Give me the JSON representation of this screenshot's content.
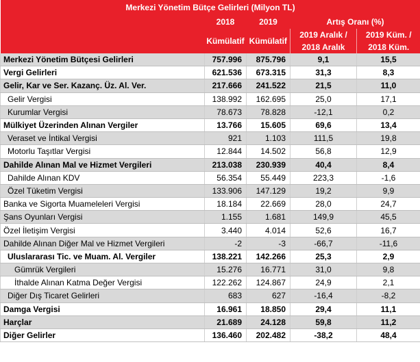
{
  "header": {
    "title": "Merkezi Yönetim Bütçe Gelirleri (Milyon TL)",
    "year_2018": "2018",
    "year_2019": "2019",
    "growth_label": "Artış Oranı (%)",
    "cum_2018": "Kümülatif",
    "cum_2019": "Kümülatif",
    "col3_line1": "2019 Aralık /",
    "col3_line2": "2018 Aralık",
    "col4_line1": "2019 Küm. /",
    "col4_line2": "2018 Küm."
  },
  "rows": [
    {
      "label": "Merkezi Yönetim  Bütçesi Gelirleri",
      "v2018": "757.996",
      "v2019": "875.796",
      "dec": "9,1",
      "cum": "15,5",
      "bold": true,
      "shade": true,
      "indent": 0
    },
    {
      "label": "Vergi Gelirleri",
      "v2018": "621.536",
      "v2019": "673.315",
      "dec": "31,3",
      "cum": "8,3",
      "bold": true,
      "shade": false,
      "indent": 0
    },
    {
      "label": "Gelir, Kar ve Ser. Kazanç. Üz. Al. Ver.",
      "v2018": "217.666",
      "v2019": "241.522",
      "dec": "21,5",
      "cum": "11,0",
      "bold": true,
      "shade": true,
      "indent": 0
    },
    {
      "label": "Gelir Vergisi",
      "v2018": "138.992",
      "v2019": "162.695",
      "dec": "25,0",
      "cum": "17,1",
      "bold": false,
      "shade": false,
      "indent": 1
    },
    {
      "label": "Kurumlar Vergisi",
      "v2018": "78.673",
      "v2019": "78.828",
      "dec": "-12,1",
      "cum": "0,2",
      "bold": false,
      "shade": true,
      "indent": 1
    },
    {
      "label": "Mülkiyet Üzerinden Alınan Vergiler",
      "v2018": "13.766",
      "v2019": "15.605",
      "dec": "69,6",
      "cum": "13,4",
      "bold": true,
      "shade": false,
      "indent": 0
    },
    {
      "label": "Veraset ve İntikal Vergisi",
      "v2018": "921",
      "v2019": "1.103",
      "dec": "111,5",
      "cum": "19,8",
      "bold": false,
      "shade": true,
      "indent": 1
    },
    {
      "label": "Motorlu Taşıtlar Vergisi",
      "v2018": "12.844",
      "v2019": "14.502",
      "dec": "56,8",
      "cum": "12,9",
      "bold": false,
      "shade": false,
      "indent": 1
    },
    {
      "label": "Dahilde Alınan Mal ve Hizmet Vergileri",
      "v2018": "213.038",
      "v2019": "230.939",
      "dec": "40,4",
      "cum": "8,4",
      "bold": true,
      "shade": true,
      "indent": 0
    },
    {
      "label": "Dahilde Alınan KDV",
      "v2018": "56.354",
      "v2019": "55.449",
      "dec": "223,3",
      "cum": "-1,6",
      "bold": false,
      "shade": false,
      "indent": 1
    },
    {
      "label": "Özel Tüketim Vergisi",
      "v2018": "133.906",
      "v2019": "147.129",
      "dec": "19,2",
      "cum": "9,9",
      "bold": false,
      "shade": true,
      "indent": 1
    },
    {
      "label": "Banka ve Sigorta Muameleleri Vergisi",
      "v2018": "18.184",
      "v2019": "22.669",
      "dec": "28,0",
      "cum": "24,7",
      "bold": false,
      "shade": false,
      "indent": 0
    },
    {
      "label": "Şans Oyunları Vergisi",
      "v2018": "1.155",
      "v2019": "1.681",
      "dec": "149,9",
      "cum": "45,5",
      "bold": false,
      "shade": true,
      "indent": 0
    },
    {
      "label": "Özel İletişim Vergisi",
      "v2018": "3.440",
      "v2019": "4.014",
      "dec": "52,6",
      "cum": "16,7",
      "bold": false,
      "shade": false,
      "indent": 0
    },
    {
      "label": "Dahilde Alınan Diğer Mal ve Hizmet Vergileri",
      "v2018": "-2",
      "v2019": "-3",
      "dec": "-66,7",
      "cum": "-11,6",
      "bold": false,
      "shade": true,
      "indent": 0
    },
    {
      "label": "Uluslararası Tic. ve Muam. Al. Vergiler",
      "v2018": "138.221",
      "v2019": "142.266",
      "dec": "25,3",
      "cum": "2,9",
      "bold": true,
      "shade": false,
      "indent": 1
    },
    {
      "label": "Gümrük Vergileri",
      "v2018": "15.276",
      "v2019": "16.771",
      "dec": "31,0",
      "cum": "9,8",
      "bold": false,
      "shade": true,
      "indent": 2
    },
    {
      "label": "İthalde Alınan Katma Değer Vergisi",
      "v2018": "122.262",
      "v2019": "124.867",
      "dec": "24,9",
      "cum": "2,1",
      "bold": false,
      "shade": false,
      "indent": 2
    },
    {
      "label": "Diğer Dış Ticaret Gelirleri",
      "v2018": "683",
      "v2019": "627",
      "dec": "-16,4",
      "cum": "-8,2",
      "bold": false,
      "shade": true,
      "indent": 1
    },
    {
      "label": "Damga Vergisi",
      "v2018": "16.961",
      "v2019": "18.850",
      "dec": "29,4",
      "cum": "11,1",
      "bold": true,
      "shade": false,
      "indent": 0
    },
    {
      "label": "Harçlar",
      "v2018": "21.689",
      "v2019": "24.128",
      "dec": "59,8",
      "cum": "11,2",
      "bold": true,
      "shade": true,
      "indent": 0
    },
    {
      "label": "Diğer Gelirler",
      "v2018": "136.460",
      "v2019": "202.482",
      "dec": "-38,2",
      "cum": "48,4",
      "bold": true,
      "shade": false,
      "indent": 0
    }
  ]
}
